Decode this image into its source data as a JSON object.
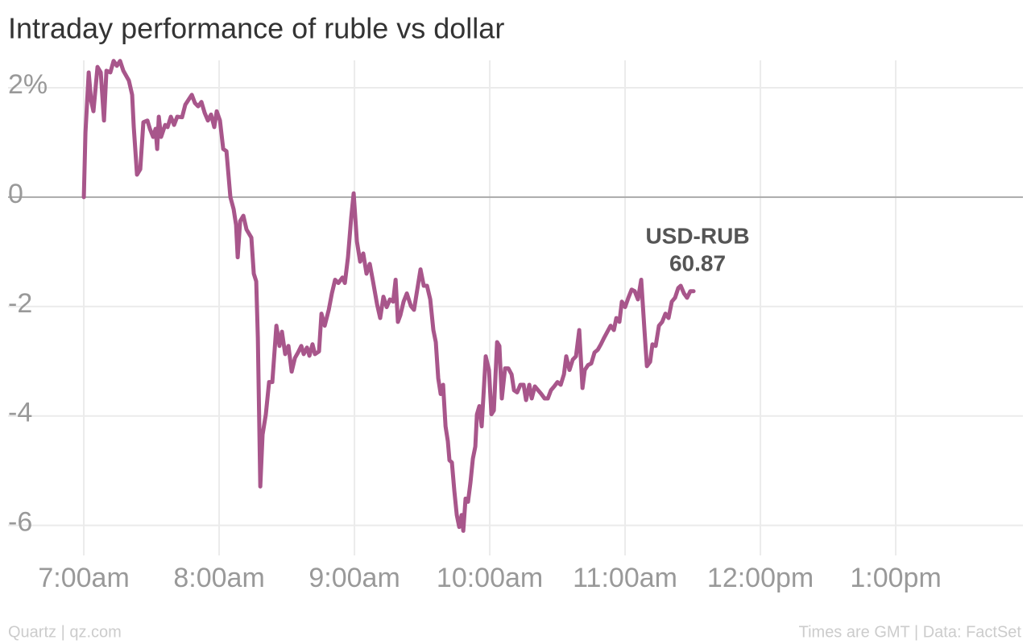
{
  "chart_data": {
    "type": "line",
    "title": "Intraday performance of ruble vs dollar",
    "source_left": "Quartz | qz.com",
    "source_right": "Times are GMT | Data: FactSet",
    "annotation": {
      "label": "USD-RUB",
      "value": 60.87
    },
    "xlim": [
      6.44,
      13.94
    ],
    "xticks": [
      {
        "value": 7,
        "label": "7:00am"
      },
      {
        "value": 8,
        "label": "8:00am"
      },
      {
        "value": 9,
        "label": "9:00am"
      },
      {
        "value": 10,
        "label": "10:00am"
      },
      {
        "value": 11,
        "label": "11:00am"
      },
      {
        "value": 12,
        "label": "12:00pm"
      },
      {
        "value": 13,
        "label": "1:00pm"
      }
    ],
    "ylim": [
      -6.55,
      2.5
    ],
    "yticks": [
      {
        "value": 2,
        "label": "2%"
      },
      0,
      -2,
      -4,
      -6
    ],
    "grid": true,
    "series": [
      {
        "name": "USD-RUB",
        "color": "#a8568b",
        "x": [
          7.0,
          7.012,
          7.036,
          7.054,
          7.071,
          7.101,
          7.125,
          7.149,
          7.167,
          7.196,
          7.22,
          7.244,
          7.268,
          7.292,
          7.333,
          7.357,
          7.369,
          7.393,
          7.417,
          7.44,
          7.47,
          7.488,
          7.512,
          7.53,
          7.542,
          7.554,
          7.571,
          7.601,
          7.619,
          7.643,
          7.667,
          7.69,
          7.726,
          7.75,
          7.774,
          7.798,
          7.821,
          7.845,
          7.869,
          7.893,
          7.917,
          7.94,
          7.964,
          7.982,
          8.006,
          8.03,
          8.054,
          8.083,
          8.107,
          8.125,
          8.137,
          8.155,
          8.179,
          8.202,
          8.238,
          8.256,
          8.274,
          8.286,
          8.304,
          8.321,
          8.345,
          8.369,
          8.393,
          8.423,
          8.446,
          8.464,
          8.488,
          8.512,
          8.536,
          8.56,
          8.583,
          8.607,
          8.625,
          8.649,
          8.667,
          8.69,
          8.708,
          8.738,
          8.756,
          8.78,
          8.81,
          8.833,
          8.857,
          8.881,
          8.911,
          8.929,
          8.952,
          8.976,
          8.994,
          9.018,
          9.042,
          9.065,
          9.089,
          9.113,
          9.137,
          9.167,
          9.19,
          9.214,
          9.238,
          9.262,
          9.286,
          9.304,
          9.321,
          9.339,
          9.363,
          9.387,
          9.417,
          9.44,
          9.464,
          9.488,
          9.512,
          9.536,
          9.56,
          9.583,
          9.601,
          9.619,
          9.637,
          9.655,
          9.673,
          9.69,
          9.702,
          9.72,
          9.738,
          9.756,
          9.774,
          9.792,
          9.804,
          9.821,
          9.839,
          9.857,
          9.875,
          9.893,
          9.905,
          9.923,
          9.94,
          9.952,
          9.97,
          9.994,
          10.012,
          10.03,
          10.054,
          10.071,
          10.089,
          10.113,
          10.137,
          10.161,
          10.179,
          10.202,
          10.226,
          10.25,
          10.268,
          10.292,
          10.31,
          10.333,
          10.357,
          10.381,
          10.405,
          10.429,
          10.452,
          10.476,
          10.5,
          10.524,
          10.548,
          10.565,
          10.589,
          10.613,
          10.637,
          10.661,
          10.685,
          10.702,
          10.726,
          10.75,
          10.774,
          10.798,
          10.821,
          10.845,
          10.869,
          10.893,
          10.917,
          10.935,
          10.958,
          10.976,
          11.0,
          11.024,
          11.048,
          11.071,
          11.095,
          11.119,
          11.143,
          11.161,
          11.185,
          11.202,
          11.226,
          11.25,
          11.274,
          11.298,
          11.321,
          11.345,
          11.369,
          11.393,
          11.411,
          11.435,
          11.458,
          11.482,
          11.506
        ],
        "values": [
          0,
          1.18,
          2.28,
          1.76,
          1.57,
          2.38,
          2.28,
          1.4,
          2.31,
          2.28,
          2.49,
          2.4,
          2.49,
          2.31,
          2.13,
          1.87,
          1.28,
          0.41,
          0.51,
          1.37,
          1.4,
          1.25,
          1.1,
          1.25,
          0.88,
          1.47,
          1.1,
          1.32,
          1.28,
          1.47,
          1.32,
          1.47,
          1.46,
          1.69,
          1.78,
          1.87,
          1.72,
          1.66,
          1.74,
          1.54,
          1.4,
          1.51,
          1.28,
          1.57,
          1.4,
          0.88,
          0.84,
          0,
          -0.22,
          -0.51,
          -1.1,
          -0.44,
          -0.34,
          -0.59,
          -0.74,
          -1.4,
          -1.54,
          -2.57,
          -5.29,
          -4.34,
          -3.97,
          -3.38,
          -3.38,
          -2.35,
          -2.72,
          -2.46,
          -2.87,
          -2.72,
          -3.19,
          -2.94,
          -2.84,
          -2.72,
          -2.87,
          -2.75,
          -2.9,
          -2.69,
          -2.87,
          -2.82,
          -2.13,
          -2.35,
          -2.06,
          -1.76,
          -1.51,
          -1.57,
          -1.47,
          -1.57,
          -1.1,
          -0.37,
          0.07,
          -0.81,
          -1.18,
          -1.03,
          -1.4,
          -1.22,
          -1.54,
          -1.96,
          -2.21,
          -1.82,
          -2.01,
          -1.87,
          -1.91,
          -1.51,
          -2.28,
          -2.16,
          -1.91,
          -1.76,
          -1.99,
          -2.06,
          -1.69,
          -1.32,
          -1.62,
          -1.62,
          -1.87,
          -2.43,
          -2.65,
          -3.31,
          -3.6,
          -3.43,
          -4.19,
          -4.46,
          -4.81,
          -4.85,
          -5.37,
          -5.81,
          -6.03,
          -5.81,
          -6.1,
          -5.51,
          -5.57,
          -5.22,
          -4.78,
          -4.56,
          -3.97,
          -3.82,
          -4.19,
          -3.68,
          -2.91,
          -3.16,
          -3.97,
          -3.9,
          -2.65,
          -2.72,
          -3.68,
          -3.13,
          -3.13,
          -3.24,
          -3.53,
          -3.57,
          -3.43,
          -3.43,
          -3.71,
          -3.43,
          -3.68,
          -3.46,
          -3.53,
          -3.6,
          -3.68,
          -3.68,
          -3.53,
          -3.46,
          -3.38,
          -3.43,
          -3.24,
          -2.91,
          -3.16,
          -2.97,
          -2.91,
          -2.43,
          -3.49,
          -3.16,
          -3.07,
          -3.04,
          -2.84,
          -2.79,
          -2.69,
          -2.57,
          -2.46,
          -2.35,
          -2.43,
          -2.21,
          -2.28,
          -1.91,
          -2.01,
          -1.84,
          -1.69,
          -1.72,
          -1.87,
          -1.51,
          -2.43,
          -3.09,
          -3.01,
          -2.69,
          -2.72,
          -2.35,
          -2.28,
          -2.13,
          -2.21,
          -1.91,
          -1.84,
          -1.66,
          -1.62,
          -1.76,
          -1.84,
          -1.72,
          -1.72
        ]
      }
    ]
  }
}
